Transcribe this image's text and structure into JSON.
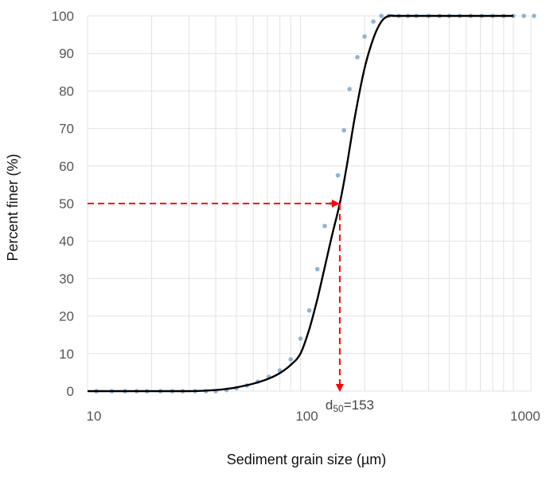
{
  "chart_data": {
    "type": "line",
    "xlabel": "Sediment grain size (µm)",
    "ylabel": "Percent finer (%)",
    "x_scale": "log",
    "xlim": [
      10,
      1000
    ],
    "ylim": [
      0,
      100
    ],
    "x_ticks": [
      10,
      100,
      1000
    ],
    "x_tick_labels": [
      "10",
      "100",
      "1000"
    ],
    "y_ticks": [
      0,
      10,
      20,
      30,
      40,
      50,
      60,
      70,
      80,
      90,
      100
    ],
    "y_tick_labels": [
      "0",
      "10",
      "20",
      "30",
      "40",
      "50",
      "60",
      "70",
      "80",
      "90",
      "100"
    ],
    "grid": true,
    "series": [
      {
        "kind": "scatter",
        "color": "#7fa6c9",
        "x": [
          11,
          13,
          15,
          17,
          19,
          22,
          25,
          28,
          32,
          36,
          40,
          45,
          50,
          56,
          63,
          71,
          80,
          90,
          100,
          110,
          120,
          130,
          140,
          150,
          160,
          170,
          185,
          200,
          220,
          240,
          260,
          290,
          320,
          350,
          400,
          450,
          500,
          560,
          630,
          710,
          800,
          900,
          1000,
          1120,
          1250
        ],
        "y": [
          0,
          0,
          0,
          0,
          0,
          0,
          0,
          0,
          0,
          0,
          0,
          0.3,
          0.8,
          1.5,
          2.5,
          3.8,
          5.5,
          8.5,
          14,
          21.5,
          32.5,
          44,
          50,
          57.5,
          69.5,
          80.5,
          89,
          94.5,
          98.5,
          100,
          100,
          100,
          100,
          100,
          100,
          100,
          100,
          100,
          100,
          100,
          100,
          100,
          100,
          100,
          100
        ]
      },
      {
        "kind": "line",
        "color": "#000000",
        "x": [
          10,
          20,
          30,
          35,
          40,
          45,
          50,
          60,
          70,
          80,
          90,
          100,
          110,
          120,
          130,
          140,
          153,
          165,
          180,
          200,
          220,
          240,
          260,
          280,
          300,
          1000
        ],
        "y": [
          0,
          0,
          0,
          0.1,
          0.3,
          0.6,
          1,
          2,
          3.2,
          4.8,
          7,
          10,
          16.5,
          24.5,
          33,
          41,
          50,
          60,
          73,
          86,
          94,
          98.5,
          100,
          100,
          100,
          100
        ]
      }
    ],
    "annotations": [
      {
        "type": "arrow-horizontal",
        "color": "#ff0000",
        "from": {
          "x": 10,
          "y": 50
        },
        "to": {
          "x": 153,
          "y": 50
        }
      },
      {
        "type": "arrow-vertical",
        "color": "#ff0000",
        "from": {
          "x": 153,
          "y": 50
        },
        "to": {
          "x": 153,
          "y": 0
        }
      },
      {
        "type": "label",
        "main": "d",
        "sub": "50",
        "suffix": "=153",
        "x": 153,
        "y": 0
      }
    ],
    "colors": {
      "grid": "#e3e3e3",
      "tick_text": "#555555",
      "axis_title": "#111111"
    }
  }
}
